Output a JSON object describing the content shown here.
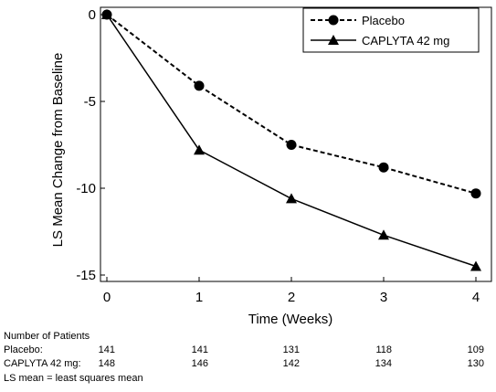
{
  "chart_data": {
    "type": "line",
    "xlabel": "Time (Weeks)",
    "ylabel": "LS Mean Change from Baseline",
    "x": [
      0,
      1,
      2,
      3,
      4
    ],
    "xlim": [
      0,
      4
    ],
    "ylim": [
      -15,
      0
    ],
    "x_ticks": [
      "0",
      "1",
      "2",
      "3",
      "4"
    ],
    "y_ticks": [
      "0",
      "-5",
      "-10",
      "-15"
    ],
    "grid": false,
    "legend_position": "top-right",
    "series": [
      {
        "name": "Placebo",
        "values": [
          0,
          -4.1,
          -7.5,
          -8.8,
          -10.3
        ],
        "line_style": "dashed",
        "marker": "circle",
        "color": "#000000"
      },
      {
        "name": "CAPLYTA 42 mg",
        "values": [
          0,
          -7.8,
          -10.6,
          -12.7,
          -14.5
        ],
        "line_style": "solid",
        "marker": "triangle",
        "color": "#000000"
      }
    ]
  },
  "patients_table": {
    "title": "Number of Patients",
    "rows": [
      {
        "label": "Placebo:",
        "values": [
          "141",
          "141",
          "131",
          "118",
          "109"
        ]
      },
      {
        "label": "CAPLYTA 42 mg:",
        "values": [
          "148",
          "146",
          "142",
          "134",
          "130"
        ]
      }
    ]
  },
  "footnote": "LS mean = least squares mean"
}
